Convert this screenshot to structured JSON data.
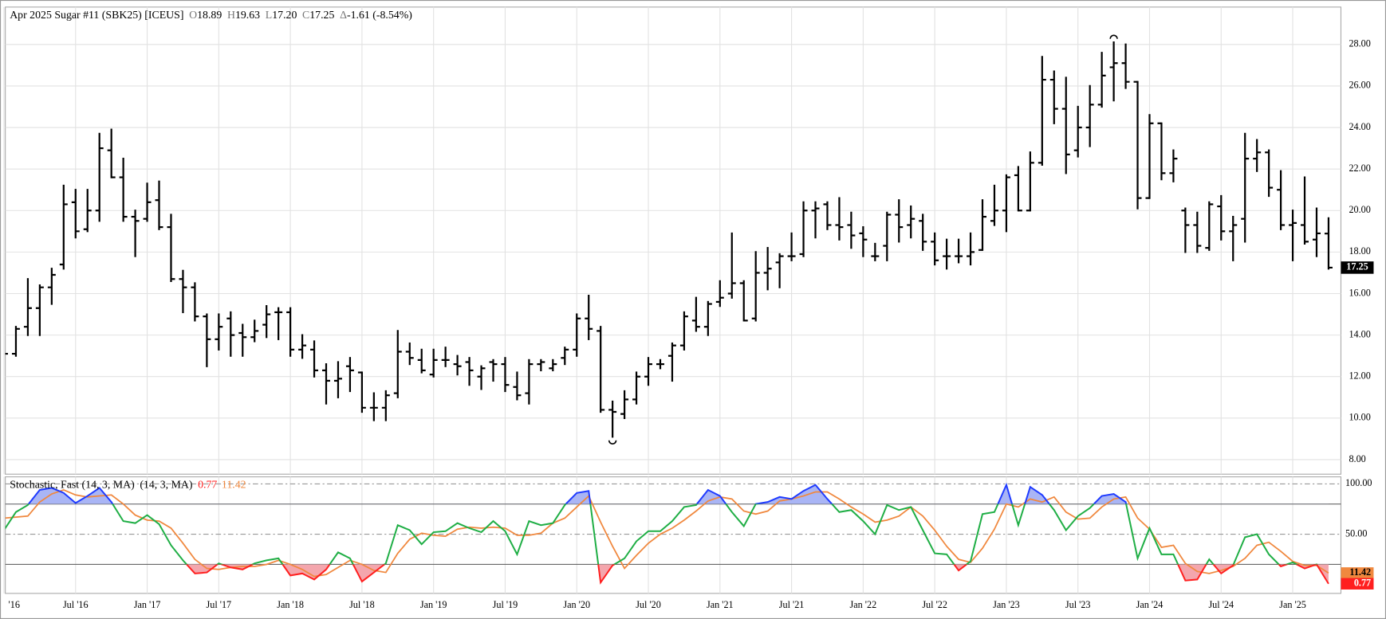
{
  "chart_data": [
    {
      "type": "ohlc",
      "title": "Apr 2025 Sugar #11 (SBK25) [ICEUS]",
      "quote": [
        {
          "prefix": "O",
          "text": "18.89"
        },
        {
          "prefix": "H",
          "text": "19.63"
        },
        {
          "prefix": "L",
          "text": "17.20"
        },
        {
          "prefix": "C",
          "text": "17.25"
        },
        {
          "prefix": "Δ",
          "text": "-1.61 (-8.54%)"
        }
      ],
      "last_label": "17.25",
      "color": "#000000",
      "x": [
        "2016-01",
        "2016-02",
        "2016-03",
        "2016-04",
        "2016-05",
        "2016-06",
        "2016-07",
        "2016-08",
        "2016-09",
        "2016-10",
        "2016-11",
        "2016-12",
        "2017-01",
        "2017-02",
        "2017-03",
        "2017-04",
        "2017-05",
        "2017-06",
        "2017-07",
        "2017-08",
        "2017-09",
        "2017-10",
        "2017-11",
        "2017-12",
        "2018-01",
        "2018-02",
        "2018-03",
        "2018-04",
        "2018-05",
        "2018-06",
        "2018-07",
        "2018-08",
        "2018-09",
        "2018-10",
        "2018-11",
        "2018-12",
        "2019-01",
        "2019-02",
        "2019-03",
        "2019-04",
        "2019-05",
        "2019-06",
        "2019-07",
        "2019-08",
        "2019-09",
        "2019-10",
        "2019-11",
        "2019-12",
        "2020-01",
        "2020-02",
        "2020-03",
        "2020-04",
        "2020-05",
        "2020-06",
        "2020-07",
        "2020-08",
        "2020-09",
        "2020-10",
        "2020-11",
        "2020-12",
        "2021-01",
        "2021-02",
        "2021-03",
        "2021-04",
        "2021-05",
        "2021-06",
        "2021-07",
        "2021-08",
        "2021-09",
        "2021-10",
        "2021-11",
        "2021-12",
        "2022-01",
        "2022-02",
        "2022-03",
        "2022-04",
        "2022-05",
        "2022-06",
        "2022-07",
        "2022-08",
        "2022-09",
        "2022-10",
        "2022-11",
        "2022-12",
        "2023-01",
        "2023-02",
        "2023-03",
        "2023-04",
        "2023-05",
        "2023-06",
        "2023-07",
        "2023-08",
        "2023-09",
        "2023-10",
        "2023-11",
        "2023-12",
        "2024-01",
        "2024-02",
        "2024-03",
        "2024-04",
        "2024-05",
        "2024-06",
        "2024-07",
        "2024-08",
        "2024-09",
        "2024-10",
        "2024-11",
        "2024-12",
        "2025-01",
        "2025-02",
        "2025-03",
        "2025-04"
      ],
      "open": [
        13.1,
        13.1,
        14.4,
        15.3,
        16.3,
        17.4,
        20.4,
        19.1,
        20.0,
        22.9,
        21.6,
        19.7,
        19.6,
        20.5,
        19.2,
        16.7,
        16.3,
        14.9,
        13.8,
        14.8,
        14.1,
        13.9,
        14.5,
        15.1,
        15.1,
        13.3,
        13.3,
        12.3,
        11.8,
        12.5,
        12.2,
        10.5,
        10.5,
        11.2,
        13.2,
        12.8,
        12.1,
        12.8,
        12.6,
        12.7,
        12.0,
        12.7,
        12.6,
        11.5,
        11.2,
        12.6,
        12.4,
        12.9,
        13.3,
        14.8,
        14.2,
        10.4,
        10.2,
        10.9,
        12.0,
        12.6,
        13.0,
        13.5,
        14.7,
        14.4,
        15.6,
        16.0,
        16.5,
        14.8,
        17.0,
        17.5,
        17.8,
        17.9,
        20.0,
        20.3,
        19.3,
        19.3,
        18.9,
        17.8,
        18.3,
        19.8,
        19.3,
        19.5,
        18.5,
        17.8,
        17.8,
        17.8,
        18.1,
        19.5,
        20.0,
        21.7,
        20.0,
        22.3,
        26.3,
        24.9,
        22.9,
        24.0,
        25.1,
        26.9,
        27.1,
        26.2,
        20.6,
        24.2,
        21.8,
        20.0,
        19.3,
        18.2,
        20.2,
        19.0,
        19.6,
        22.5,
        22.8,
        21.0,
        19.3,
        19.3,
        18.6,
        18.89
      ],
      "high": [
        13.2,
        14.4,
        16.7,
        16.4,
        17.2,
        21.2,
        21.0,
        21.0,
        23.7,
        23.9,
        22.5,
        20.0,
        21.3,
        21.4,
        19.8,
        17.1,
        16.5,
        15.0,
        15.0,
        15.1,
        14.5,
        14.7,
        15.4,
        15.3,
        15.3,
        14.0,
        13.7,
        12.6,
        12.7,
        12.9,
        12.2,
        11.2,
        11.3,
        14.2,
        13.6,
        13.3,
        13.3,
        13.4,
        13.0,
        12.9,
        12.5,
        12.8,
        12.9,
        12.2,
        12.8,
        12.8,
        12.8,
        13.4,
        15.0,
        15.9,
        14.4,
        10.8,
        11.3,
        12.2,
        12.9,
        12.8,
        13.6,
        15.1,
        15.8,
        15.6,
        16.6,
        18.9,
        16.6,
        18.0,
        18.2,
        17.9,
        18.9,
        20.4,
        20.4,
        20.4,
        20.6,
        19.9,
        19.2,
        18.4,
        19.9,
        20.5,
        20.2,
        19.8,
        18.9,
        18.6,
        18.6,
        18.9,
        20.5,
        21.2,
        21.7,
        22.1,
        22.8,
        27.4,
        26.7,
        26.4,
        25.0,
        26.0,
        27.6,
        28.1,
        28.0,
        26.2,
        24.6,
        24.2,
        22.9,
        20.1,
        19.9,
        20.4,
        20.7,
        19.7,
        23.7,
        23.4,
        22.9,
        21.9,
        20.0,
        21.6,
        20.1,
        19.63
      ],
      "low": [
        12.4,
        13.0,
        14.0,
        14.0,
        15.5,
        17.2,
        18.7,
        19.0,
        19.5,
        21.6,
        19.5,
        17.8,
        19.5,
        19.1,
        16.6,
        15.1,
        14.7,
        12.5,
        13.3,
        13.0,
        13.0,
        13.7,
        13.9,
        13.8,
        13.0,
        12.9,
        12.0,
        10.7,
        11.0,
        11.3,
        10.3,
        9.9,
        9.9,
        11.0,
        12.6,
        12.2,
        12.0,
        12.5,
        12.1,
        11.6,
        11.4,
        11.8,
        11.3,
        10.9,
        10.7,
        12.3,
        12.3,
        12.6,
        13.0,
        13.8,
        10.3,
        9.1,
        10.0,
        10.7,
        11.6,
        12.4,
        11.8,
        13.3,
        14.2,
        14.0,
        15.4,
        15.8,
        14.7,
        14.7,
        16.2,
        16.3,
        17.6,
        17.8,
        18.7,
        19.1,
        18.6,
        18.2,
        17.8,
        17.6,
        17.6,
        18.5,
        18.7,
        18.1,
        17.4,
        17.2,
        17.5,
        17.4,
        18.1,
        19.3,
        19.0,
        20.0,
        20.0,
        22.2,
        24.2,
        21.8,
        22.6,
        23.1,
        25.0,
        25.3,
        25.9,
        20.1,
        20.6,
        21.5,
        21.4,
        18.0,
        18.0,
        18.1,
        18.6,
        17.6,
        18.5,
        21.9,
        20.7,
        19.1,
        17.6,
        18.4,
        17.8,
        17.2
      ],
      "close": [
        13.1,
        14.3,
        15.3,
        16.3,
        16.9,
        20.3,
        19.0,
        20.0,
        23.0,
        21.6,
        19.7,
        19.5,
        20.4,
        19.2,
        16.7,
        16.3,
        14.9,
        13.8,
        14.4,
        14.0,
        13.9,
        14.2,
        15.0,
        15.1,
        13.3,
        13.5,
        12.3,
        11.8,
        11.9,
        12.3,
        10.5,
        10.5,
        11.1,
        13.2,
        12.9,
        12.3,
        12.8,
        12.8,
        12.5,
        12.3,
        12.4,
        12.6,
        11.6,
        11.1,
        12.6,
        12.7,
        12.6,
        13.3,
        14.8,
        14.3,
        10.4,
        10.3,
        10.9,
        12.0,
        12.6,
        12.6,
        13.5,
        14.9,
        14.4,
        15.5,
        15.8,
        16.5,
        14.7,
        17.0,
        17.2,
        17.8,
        17.8,
        20.0,
        20.1,
        19.3,
        19.2,
        18.8,
        18.6,
        17.8,
        19.8,
        19.2,
        19.6,
        18.5,
        17.6,
        17.8,
        17.8,
        18.0,
        19.7,
        20.0,
        21.6,
        20.0,
        22.3,
        26.3,
        24.9,
        22.7,
        24.0,
        25.1,
        26.5,
        27.1,
        26.2,
        20.6,
        24.2,
        21.8,
        22.5,
        19.3,
        18.3,
        20.3,
        19.0,
        19.3,
        22.5,
        22.8,
        21.1,
        19.3,
        19.4,
        18.5,
        18.9,
        17.25
      ],
      "ylim": [
        7.3,
        29.8
      ],
      "yticks": [
        {
          "value": 8,
          "label": "8.00"
        },
        {
          "value": 10,
          "label": "10.00"
        },
        {
          "value": 12,
          "label": "12.00"
        },
        {
          "value": 14,
          "label": "14.00"
        },
        {
          "value": 16,
          "label": "16.00"
        },
        {
          "value": 18,
          "label": "18.00"
        },
        {
          "value": 20,
          "label": "20.00"
        },
        {
          "value": 22,
          "label": "22.00"
        },
        {
          "value": 24,
          "label": "24.00"
        },
        {
          "value": 26,
          "label": "26.00"
        },
        {
          "value": 28,
          "label": "28.00"
        }
      ],
      "xticks": [
        {
          "value": "2016-01",
          "label": "'16"
        },
        {
          "value": "2016-07",
          "label": "Jul '16"
        },
        {
          "value": "2017-01",
          "label": "Jan '17"
        },
        {
          "value": "2017-07",
          "label": "Jul '17"
        },
        {
          "value": "2018-01",
          "label": "Jan '18"
        },
        {
          "value": "2018-07",
          "label": "Jul '18"
        },
        {
          "value": "2019-01",
          "label": "Jan '19"
        },
        {
          "value": "2019-07",
          "label": "Jul '19"
        },
        {
          "value": "2020-01",
          "label": "Jan '20"
        },
        {
          "value": "2020-07",
          "label": "Jul '20"
        },
        {
          "value": "2021-01",
          "label": "Jan '21"
        },
        {
          "value": "2021-07",
          "label": "Jul '21"
        },
        {
          "value": "2022-01",
          "label": "Jan '22"
        },
        {
          "value": "2022-07",
          "label": "Jul '22"
        },
        {
          "value": "2023-01",
          "label": "Jan '23"
        },
        {
          "value": "2023-07",
          "label": "Jul '23"
        },
        {
          "value": "2024-01",
          "label": "Jan '24"
        },
        {
          "value": "2024-07",
          "label": "Jul '24"
        },
        {
          "value": "2025-01",
          "label": "Jan '25"
        }
      ],
      "grid": true
    },
    {
      "type": "line",
      "title": "Stochastic, Fast (14, 3, MA)",
      "subtitle": "(14, 3, MA)",
      "series": [
        {
          "color": "#1fae45",
          "last_label": "0.77",
          "values": [
            54,
            72,
            79,
            94,
            96,
            91,
            81,
            88,
            96,
            82,
            63,
            61,
            69,
            60,
            39,
            24,
            11,
            12,
            21,
            17,
            15,
            21,
            24,
            26,
            9,
            11,
            5,
            15,
            32,
            26,
            3,
            12,
            21,
            59,
            54,
            40,
            52,
            53,
            61,
            56,
            52,
            63,
            53,
            30,
            63,
            59,
            61,
            79,
            91,
            93,
            2,
            19,
            26,
            43,
            53,
            53,
            63,
            77,
            79,
            94,
            88,
            72,
            58,
            80,
            82,
            87,
            85,
            93,
            99,
            85,
            72,
            74,
            63,
            50,
            79,
            74,
            77,
            54,
            31,
            30,
            14,
            23,
            70,
            72,
            99,
            59,
            97,
            89,
            74,
            54,
            68,
            76,
            88,
            90,
            82,
            26,
            56,
            30,
            30,
            4,
            5,
            25,
            11,
            19,
            47,
            50,
            30,
            18,
            22,
            16,
            20,
            0.77
          ]
        },
        {
          "color": "#f0883e",
          "last_label": "11.42",
          "values": [
            66,
            67,
            68,
            82,
            90,
            94,
            89,
            87,
            88,
            89,
            80,
            69,
            64,
            63,
            56,
            41,
            25,
            16,
            15,
            17,
            18,
            18,
            20,
            24,
            20,
            15,
            8,
            10,
            17,
            24,
            20,
            14,
            12,
            31,
            45,
            51,
            49,
            48,
            55,
            57,
            56,
            57,
            56,
            49,
            49,
            51,
            61,
            66,
            77,
            88,
            62,
            38,
            16,
            29,
            41,
            50,
            56,
            64,
            73,
            83,
            87,
            85,
            73,
            70,
            73,
            83,
            85,
            88,
            92,
            92,
            85,
            77,
            70,
            62,
            64,
            68,
            77,
            68,
            54,
            38,
            25,
            22,
            36,
            55,
            80,
            77,
            85,
            82,
            87,
            72,
            65,
            66,
            77,
            85,
            87,
            66,
            55,
            37,
            39,
            21,
            13,
            11,
            14,
            18,
            26,
            39,
            42,
            33,
            23,
            19,
            19,
            11.42
          ]
        }
      ],
      "ylim": [
        -8.8,
        107
      ],
      "yticks": [
        {
          "value": 100,
          "label": "100.00"
        },
        {
          "value": 50,
          "label": "50.00"
        }
      ],
      "levels": [
        80,
        20
      ],
      "overbought_color": "#1f3bff",
      "overbought_fill": "#a9b5f5",
      "oversold_color": "#ff1f1f",
      "oversold_fill": "#f4a6ad",
      "grid": true
    }
  ]
}
